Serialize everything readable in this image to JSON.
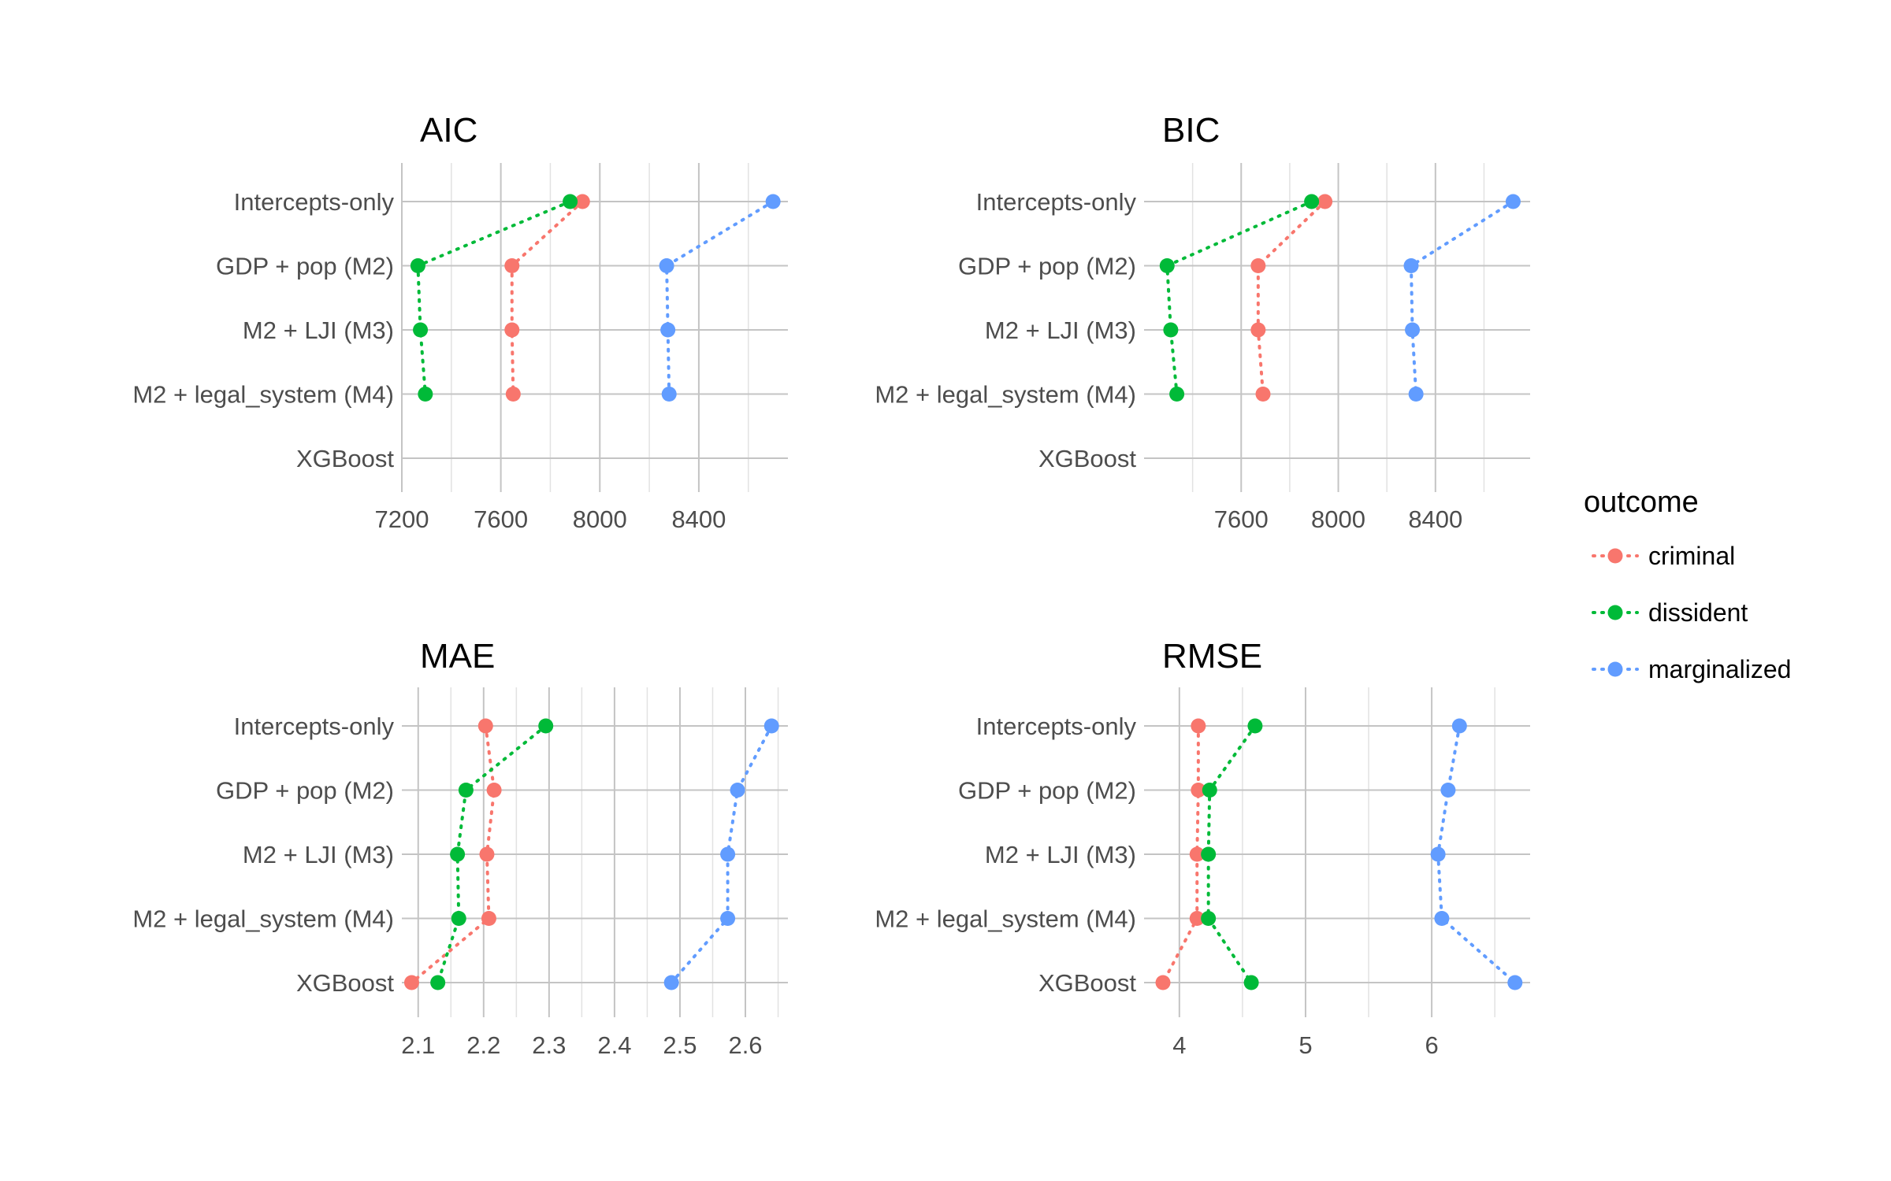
{
  "legend": {
    "title": "outcome",
    "items": [
      {
        "label": "criminal",
        "color": "#f8766d"
      },
      {
        "label": "dissident",
        "color": "#00ba38"
      },
      {
        "label": "marginalized",
        "color": "#619cff"
      }
    ]
  },
  "chart_data": [
    {
      "type": "scatter",
      "title": "AIC",
      "categories": [
        "Intercepts-only",
        "GDP + pop (M2)",
        "M2 + LJI (M3)",
        "M2 + legal_system (M4)",
        "XGBoost"
      ],
      "xlim": [
        7200,
        8760
      ],
      "xticks": [
        7200,
        7600,
        8000,
        8400
      ],
      "xtick_labels": [
        "7200",
        "7600",
        "8000",
        "8400"
      ],
      "series": [
        {
          "name": "criminal",
          "values": [
            7930,
            7645,
            7645,
            7650,
            null
          ]
        },
        {
          "name": "dissident",
          "values": [
            7880,
            7265,
            7275,
            7295,
            null
          ]
        },
        {
          "name": "marginalized",
          "values": [
            8700,
            8270,
            8275,
            8280,
            null
          ]
        }
      ]
    },
    {
      "type": "scatter",
      "title": "BIC",
      "categories": [
        "Intercepts-only",
        "GDP + pop (M2)",
        "M2 + LJI (M3)",
        "M2 + legal_system (M4)",
        "XGBoost"
      ],
      "xlim": [
        7200,
        8790
      ],
      "xticks": [
        7600,
        8000,
        8400
      ],
      "xtick_labels": [
        "7600",
        "8000",
        "8400"
      ],
      "series": [
        {
          "name": "criminal",
          "values": [
            7945,
            7670,
            7670,
            7690,
            null
          ]
        },
        {
          "name": "dissident",
          "values": [
            7890,
            7295,
            7310,
            7335,
            null
          ]
        },
        {
          "name": "marginalized",
          "values": [
            8720,
            8300,
            8305,
            8320,
            null
          ]
        }
      ]
    },
    {
      "type": "scatter",
      "title": "MAE",
      "categories": [
        "Intercepts-only",
        "GDP + pop (M2)",
        "M2 + LJI (M3)",
        "M2 + legal_system (M4)",
        "XGBoost"
      ],
      "xlim": [
        2.075,
        2.665
      ],
      "xticks": [
        2.1,
        2.2,
        2.3,
        2.4,
        2.5,
        2.6
      ],
      "xtick_labels": [
        "2.1",
        "2.2",
        "2.3",
        "2.4",
        "2.5",
        "2.6"
      ],
      "series": [
        {
          "name": "criminal",
          "values": [
            2.203,
            2.216,
            2.205,
            2.208,
            2.09
          ]
        },
        {
          "name": "dissident",
          "values": [
            2.295,
            2.173,
            2.16,
            2.162,
            2.13
          ]
        },
        {
          "name": "marginalized",
          "values": [
            2.64,
            2.588,
            2.573,
            2.573,
            2.487
          ]
        }
      ]
    },
    {
      "type": "scatter",
      "title": "RMSE",
      "categories": [
        "Intercepts-only",
        "GDP + pop (M2)",
        "M2 + LJI (M3)",
        "M2 + legal_system (M4)",
        "XGBoost"
      ],
      "xlim": [
        3.72,
        6.78
      ],
      "xticks": [
        4,
        5,
        6
      ],
      "xtick_labels": [
        "4",
        "5",
        "6"
      ],
      "series": [
        {
          "name": "criminal",
          "values": [
            4.15,
            4.15,
            4.14,
            4.14,
            3.87
          ]
        },
        {
          "name": "dissident",
          "values": [
            4.6,
            4.24,
            4.23,
            4.23,
            4.57
          ]
        },
        {
          "name": "marginalized",
          "values": [
            6.22,
            6.13,
            6.05,
            6.08,
            6.66
          ]
        }
      ]
    }
  ]
}
